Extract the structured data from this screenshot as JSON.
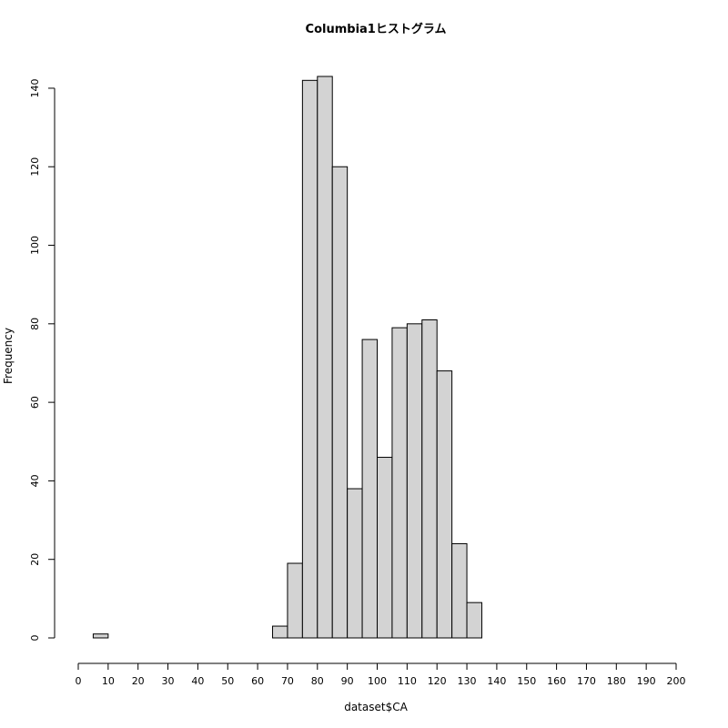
{
  "chart_data": {
    "type": "bar",
    "title": "Columbia1ヒストグラム",
    "xlabel": "dataset$CA",
    "ylabel": "Frequency",
    "bin_width": 5,
    "bins": [
      {
        "x0": 0,
        "x1": 5,
        "count": 0
      },
      {
        "x0": 5,
        "x1": 10,
        "count": 1
      },
      {
        "x0": 10,
        "x1": 15,
        "count": 0
      },
      {
        "x0": 15,
        "x1": 20,
        "count": 0
      },
      {
        "x0": 20,
        "x1": 25,
        "count": 0
      },
      {
        "x0": 25,
        "x1": 30,
        "count": 0
      },
      {
        "x0": 30,
        "x1": 35,
        "count": 0
      },
      {
        "x0": 35,
        "x1": 40,
        "count": 0
      },
      {
        "x0": 40,
        "x1": 45,
        "count": 0
      },
      {
        "x0": 45,
        "x1": 50,
        "count": 0
      },
      {
        "x0": 50,
        "x1": 55,
        "count": 0
      },
      {
        "x0": 55,
        "x1": 60,
        "count": 0
      },
      {
        "x0": 60,
        "x1": 65,
        "count": 0
      },
      {
        "x0": 65,
        "x1": 70,
        "count": 3
      },
      {
        "x0": 70,
        "x1": 75,
        "count": 19
      },
      {
        "x0": 75,
        "x1": 80,
        "count": 142
      },
      {
        "x0": 80,
        "x1": 85,
        "count": 143
      },
      {
        "x0": 85,
        "x1": 90,
        "count": 120
      },
      {
        "x0": 90,
        "x1": 95,
        "count": 38
      },
      {
        "x0": 95,
        "x1": 100,
        "count": 76
      },
      {
        "x0": 100,
        "x1": 105,
        "count": 46
      },
      {
        "x0": 105,
        "x1": 110,
        "count": 79
      },
      {
        "x0": 110,
        "x1": 115,
        "count": 80
      },
      {
        "x0": 115,
        "x1": 120,
        "count": 81
      },
      {
        "x0": 120,
        "x1": 125,
        "count": 68
      },
      {
        "x0": 125,
        "x1": 130,
        "count": 24
      },
      {
        "x0": 130,
        "x1": 135,
        "count": 9
      },
      {
        "x0": 135,
        "x1": 140,
        "count": 0
      },
      {
        "x0": 140,
        "x1": 145,
        "count": 0
      },
      {
        "x0": 145,
        "x1": 150,
        "count": 0
      },
      {
        "x0": 150,
        "x1": 155,
        "count": 0
      },
      {
        "x0": 155,
        "x1": 160,
        "count": 0
      },
      {
        "x0": 160,
        "x1": 165,
        "count": 0
      },
      {
        "x0": 165,
        "x1": 170,
        "count": 0
      },
      {
        "x0": 170,
        "x1": 175,
        "count": 0
      },
      {
        "x0": 175,
        "x1": 180,
        "count": 0
      },
      {
        "x0": 180,
        "x1": 185,
        "count": 0
      },
      {
        "x0": 185,
        "x1": 190,
        "count": 0
      },
      {
        "x0": 190,
        "x1": 195,
        "count": 0
      },
      {
        "x0": 195,
        "x1": 200,
        "count": 0
      }
    ],
    "xlim": [
      0,
      200
    ],
    "ylim": [
      0,
      143
    ],
    "x_ticks": [
      "0",
      "10",
      "20",
      "30",
      "40",
      "50",
      "60",
      "70",
      "80",
      "90",
      "100",
      "110",
      "120",
      "130",
      "140",
      "150",
      "160",
      "170",
      "180",
      "190",
      "200"
    ],
    "y_ticks": [
      "0",
      "20",
      "40",
      "60",
      "80",
      "100",
      "120",
      "140"
    ],
    "grid": false,
    "legend": "none",
    "colors": {
      "bar_fill": "#d3d3d3",
      "bar_stroke": "#000000"
    }
  }
}
